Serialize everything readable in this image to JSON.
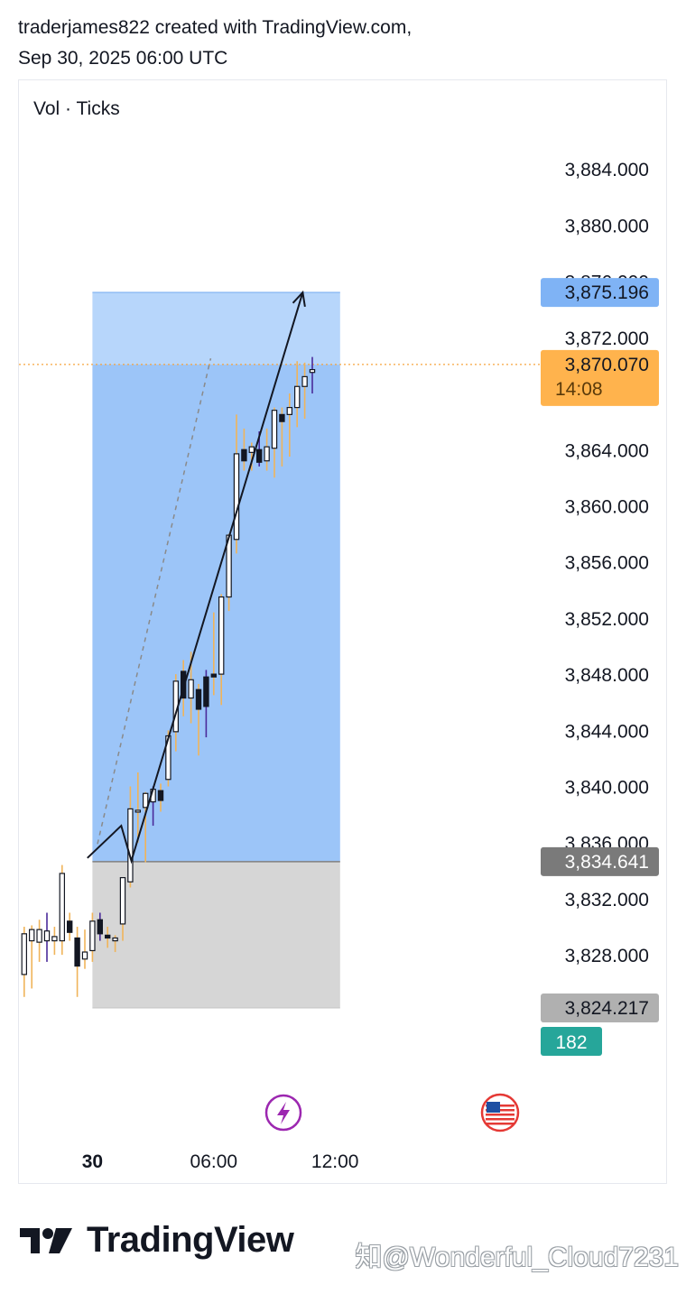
{
  "header": {
    "line1": "traderjames822 created with TradingView.com,",
    "line2": "Sep 30, 2025 06:00 UTC"
  },
  "footer": {
    "brand": "TradingView",
    "watermark": "知@Wonderful_Cloud7231"
  },
  "colors": {
    "target_zone": "#9cc5f8",
    "target_zone_top": "#b7d6fb",
    "stop_zone": "#d6d6d6",
    "candle_wick": "#f0b45a",
    "candle_wick_alt": "#4a2a9a",
    "candle_border": "#131722",
    "price_line": "#f7a43d",
    "target_label_bg": "#7fb3f5",
    "current_label_bg": "#ffb34d",
    "entry_label_bg": "#7a7a7a",
    "stop_label_bg": "#b0b0b0",
    "count_label_bg": "#26a69a"
  },
  "chart_data": {
    "type": "candlestick",
    "indicator_label": "Vol · Ticks",
    "y_ticks": [
      "3,884.000",
      "3,880.000",
      "3,876.000",
      "3,872.000",
      "3,864.000",
      "3,860.000",
      "3,856.000",
      "3,852.000",
      "3,848.000",
      "3,844.000",
      "3,840.000",
      "3,836.000",
      "3,832.000",
      "3,828.000"
    ],
    "x_ticks": [
      {
        "label": "30",
        "bold": true,
        "t": 0
      },
      {
        "label": "06:00",
        "bold": false,
        "t": 24
      },
      {
        "label": "12:00",
        "bold": false,
        "t": 48
      }
    ],
    "ylim": [
      3821,
      3888
    ],
    "xlim": [
      -14,
      75
    ],
    "price_labels": {
      "target": "3,875.196",
      "current": "3,870.070",
      "countdown": "14:08",
      "entry": "3,834.641",
      "stop": "3,824.217",
      "count": "182"
    },
    "levels": {
      "target": 3875.196,
      "current": 3870.07,
      "entry": 3834.641,
      "stop": 3824.217
    },
    "position_box": {
      "t_start": 0,
      "t_end": 49
    },
    "projection_path": [
      [
        -1,
        3834.9
      ],
      [
        5.7,
        3837.2
      ],
      [
        7.7,
        3834.7
      ],
      [
        41.6,
        3875.2
      ]
    ],
    "trend_line": [
      [
        1,
        3835.9
      ],
      [
        23.4,
        3870.5
      ]
    ],
    "candles": [
      {
        "t": -13.5,
        "o": 3826.6,
        "h": 3830.0,
        "l": 3825.0,
        "c": 3829.5
      },
      {
        "t": -12,
        "o": 3829.0,
        "h": 3830.1,
        "l": 3825.6,
        "c": 3829.8
      },
      {
        "t": -10.5,
        "o": 3828.9,
        "h": 3830.5,
        "l": 3827.5,
        "c": 3829.8
      },
      {
        "t": -9,
        "o": 3829.0,
        "h": 3831.0,
        "l": 3827.5,
        "c": 3829.7
      },
      {
        "t": -7.5,
        "o": 3829.0,
        "h": 3830.0,
        "l": 3828.0,
        "c": 3829.3
      },
      {
        "t": -6,
        "o": 3829.0,
        "h": 3834.4,
        "l": 3828.0,
        "c": 3833.8
      },
      {
        "t": -4.5,
        "o": 3830.4,
        "h": 3831.0,
        "l": 3829.0,
        "c": 3829.6
      },
      {
        "t": -3,
        "o": 3829.2,
        "h": 3830.0,
        "l": 3825.0,
        "c": 3827.2
      },
      {
        "t": -1.5,
        "o": 3827.7,
        "h": 3829.8,
        "l": 3827.0,
        "c": 3828.2
      },
      {
        "t": 0,
        "o": 3828.3,
        "h": 3831.0,
        "l": 3827.5,
        "c": 3830.4
      },
      {
        "t": 1.5,
        "o": 3830.5,
        "h": 3831.0,
        "l": 3829.0,
        "c": 3829.5
      },
      {
        "t": 3,
        "o": 3829.4,
        "h": 3830.0,
        "l": 3828.5,
        "c": 3829.2
      },
      {
        "t": 4.5,
        "o": 3829.0,
        "h": 3829.4,
        "l": 3828.2,
        "c": 3829.2
      },
      {
        "t": 6,
        "o": 3830.2,
        "h": 3833.4,
        "l": 3829.0,
        "c": 3833.5
      },
      {
        "t": 7.5,
        "o": 3833.2,
        "h": 3840.0,
        "l": 3832.8,
        "c": 3838.4
      },
      {
        "t": 9,
        "o": 3838.3,
        "h": 3841.0,
        "l": 3836.0,
        "c": 3838.3
      },
      {
        "t": 10.5,
        "o": 3838.5,
        "h": 3839.6,
        "l": 3834.6,
        "c": 3839.5
      },
      {
        "t": 12,
        "o": 3838.9,
        "h": 3840.0,
        "l": 3837.2,
        "c": 3839.8
      },
      {
        "t": 13.5,
        "o": 3839.7,
        "h": 3840.2,
        "l": 3838.2,
        "c": 3839.0
      },
      {
        "t": 15,
        "o": 3840.5,
        "h": 3844.0,
        "l": 3840.0,
        "c": 3843.6
      },
      {
        "t": 16.5,
        "o": 3843.9,
        "h": 3848.0,
        "l": 3842.5,
        "c": 3847.5
      },
      {
        "t": 18,
        "o": 3848.2,
        "h": 3849.0,
        "l": 3845.0,
        "c": 3846.3
      },
      {
        "t": 19.5,
        "o": 3846.3,
        "h": 3849.6,
        "l": 3844.5,
        "c": 3847.6
      },
      {
        "t": 21,
        "o": 3846.9,
        "h": 3847.3,
        "l": 3842.2,
        "c": 3845.5
      },
      {
        "t": 22.5,
        "o": 3847.8,
        "h": 3848.3,
        "l": 3843.5,
        "c": 3845.7
      },
      {
        "t": 24,
        "o": 3848.0,
        "h": 3852.4,
        "l": 3846.5,
        "c": 3847.8
      },
      {
        "t": 25.5,
        "o": 3848.0,
        "h": 3853.7,
        "l": 3845.8,
        "c": 3853.5
      },
      {
        "t": 27,
        "o": 3853.5,
        "h": 3858.0,
        "l": 3852.5,
        "c": 3857.9
      },
      {
        "t": 28.5,
        "o": 3857.6,
        "h": 3866.5,
        "l": 3856.6,
        "c": 3863.7
      },
      {
        "t": 30,
        "o": 3864.0,
        "h": 3865.5,
        "l": 3862.5,
        "c": 3863.2
      },
      {
        "t": 31.5,
        "o": 3863.8,
        "h": 3864.5,
        "l": 3862.5,
        "c": 3864.2
      },
      {
        "t": 33,
        "o": 3864.0,
        "h": 3865.3,
        "l": 3862.8,
        "c": 3863.1
      },
      {
        "t": 34.5,
        "o": 3863.2,
        "h": 3865.5,
        "l": 3862.5,
        "c": 3864.2
      },
      {
        "t": 36,
        "o": 3864.1,
        "h": 3867.0,
        "l": 3862.0,
        "c": 3866.8
      },
      {
        "t": 37.5,
        "o": 3866.5,
        "h": 3867.0,
        "l": 3862.8,
        "c": 3866.0
      },
      {
        "t": 39,
        "o": 3866.5,
        "h": 3868.0,
        "l": 3863.5,
        "c": 3867.0
      },
      {
        "t": 40.5,
        "o": 3867.0,
        "h": 3870.3,
        "l": 3865.6,
        "c": 3868.5
      },
      {
        "t": 42,
        "o": 3868.5,
        "h": 3870.2,
        "l": 3866.2,
        "c": 3869.2
      },
      {
        "t": 43.5,
        "o": 3869.5,
        "h": 3870.6,
        "l": 3868.0,
        "c": 3869.7
      }
    ]
  }
}
